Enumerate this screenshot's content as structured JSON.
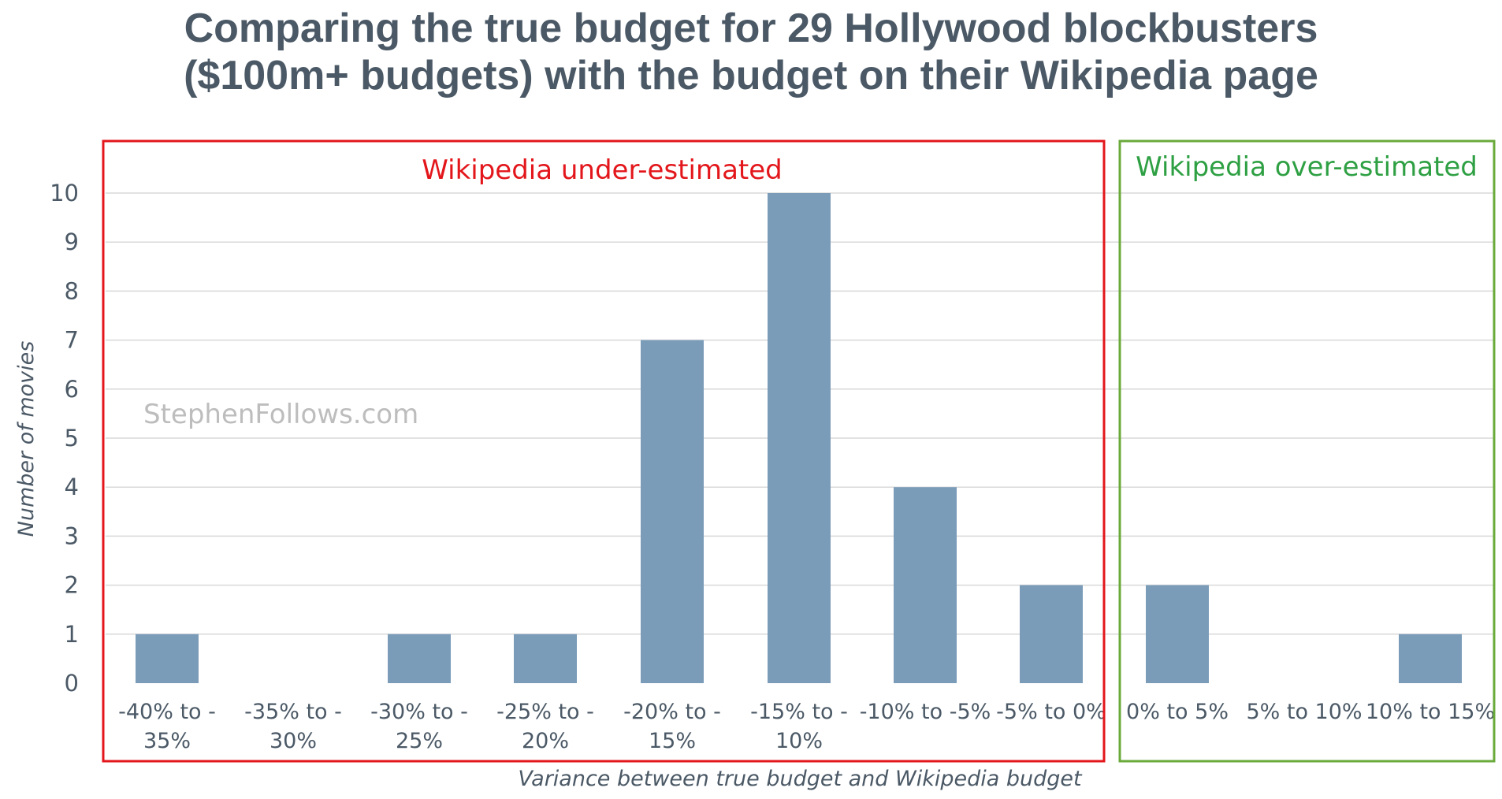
{
  "title_line1": "Comparing the true budget for 29 Hollywood blockbusters",
  "title_line2": "($100m+ budgets) with the budget on their Wikipedia page",
  "watermark": "StephenFollows.com",
  "regions": {
    "under": {
      "label": "Wikipedia under-estimated",
      "color": "#e3161b"
    },
    "over": {
      "label": "Wikipedia over-estimated",
      "color": "#6aaa3b"
    }
  },
  "colors": {
    "bar": "#7b9cb9",
    "grid": "#d9d9d9",
    "text": "#4b5966",
    "over_label": "#2ea043"
  },
  "chart_data": {
    "type": "bar",
    "title": "Comparing the true budget for 29 Hollywood blockbusters ($100m+ budgets) with the budget on their Wikipedia page",
    "xlabel": "Variance between true budget and Wikipedia budget",
    "ylabel": "Number of movies",
    "ylim": [
      0,
      10
    ],
    "yticks": [
      0,
      1,
      2,
      3,
      4,
      5,
      6,
      7,
      8,
      9,
      10
    ],
    "grid": true,
    "categories": [
      [
        "-40% to -",
        "35%"
      ],
      [
        "-35% to -",
        "30%"
      ],
      [
        "-30% to -",
        "25%"
      ],
      [
        "-25% to -",
        "20%"
      ],
      [
        "-20% to -",
        "15%"
      ],
      [
        "-15% to -",
        "10%"
      ],
      [
        "-10% to -5%"
      ],
      [
        "-5% to 0%"
      ],
      [
        "0% to 5%"
      ],
      [
        "5% to 10%"
      ],
      [
        "10% to 15%"
      ]
    ],
    "values": [
      1,
      0,
      1,
      1,
      7,
      10,
      4,
      2,
      2,
      0,
      1
    ]
  }
}
